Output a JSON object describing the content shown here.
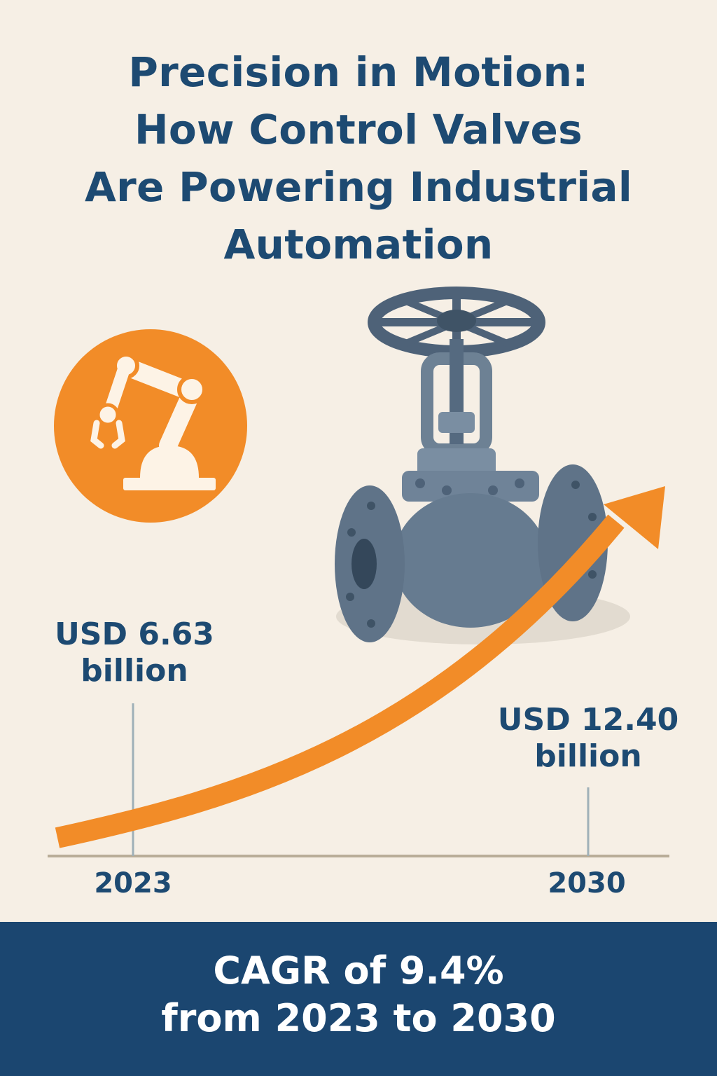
{
  "title": {
    "lines": [
      "Precision in Motion:",
      "How Control Valves",
      "Are Powering Industrial",
      "Automation"
    ]
  },
  "icons": {
    "robot_arm": "robot-arm-icon",
    "valve": "globe-valve-illustration",
    "arrow": "growth-arrow"
  },
  "colors": {
    "background": "#f6efe5",
    "navy": "#1d4a72",
    "orange": "#f28c28",
    "valve_gray": "#5f7388",
    "footer": "#1b4670"
  },
  "chart_data": {
    "type": "line",
    "x": [
      "2023",
      "2030"
    ],
    "series": [
      {
        "values": [
          6.63,
          12.4
        ]
      }
    ],
    "annotations": [
      {
        "x": "2023",
        "line1": "USD 6.63",
        "line2": "billion"
      },
      {
        "x": "2030",
        "line1": "USD 12.40",
        "line2": "billion"
      }
    ],
    "xlabel": "",
    "ylabel": ""
  },
  "footer": {
    "line1": "CAGR of 9.4%",
    "line2": "from 2023 to 2030"
  }
}
